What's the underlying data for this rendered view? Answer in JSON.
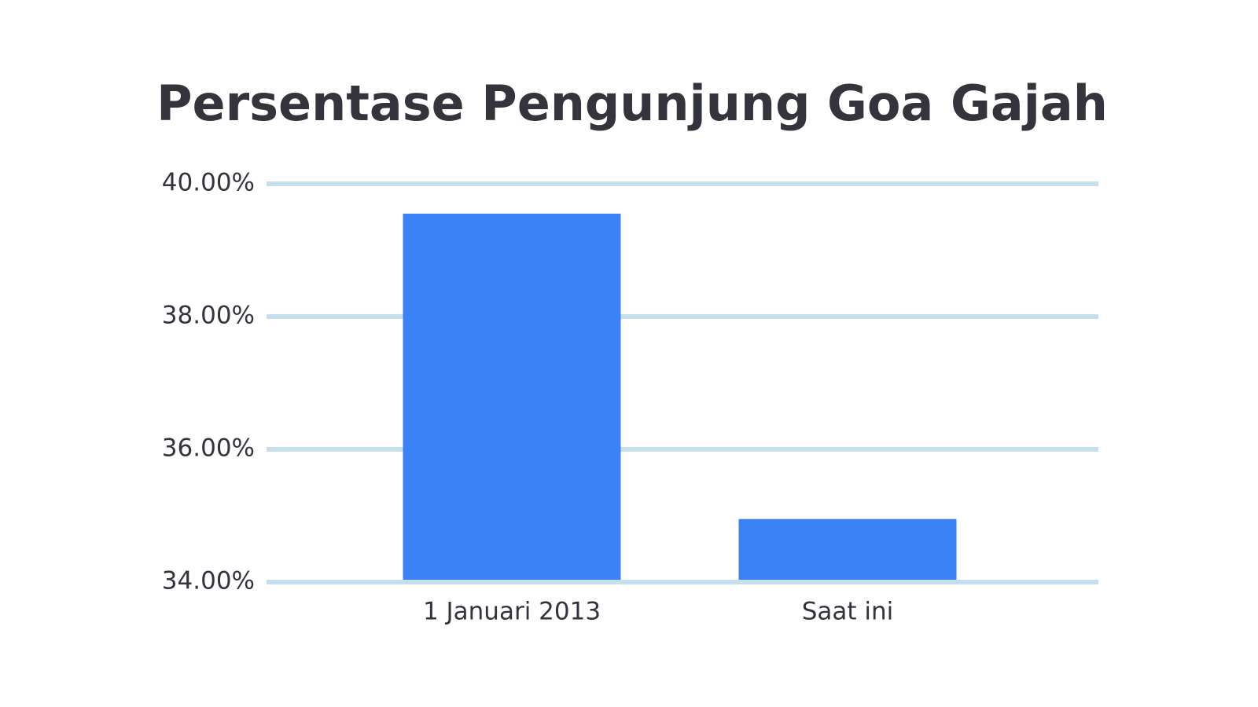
{
  "chart_data": {
    "type": "bar",
    "title": "Persentase Pengunjung Goa Gajah",
    "categories": [
      "1 Januari 2013",
      "Saat ini"
    ],
    "values": [
      39.55,
      34.95
    ],
    "color": "#3b82f6",
    "ylim": [
      34,
      40
    ],
    "yticks": [
      {
        "value": 34,
        "label": "34.00%"
      },
      {
        "value": 36,
        "label": "36.00%"
      },
      {
        "value": 38,
        "label": "38.00%"
      },
      {
        "value": 40,
        "label": "40.00%"
      }
    ],
    "grid": true
  }
}
